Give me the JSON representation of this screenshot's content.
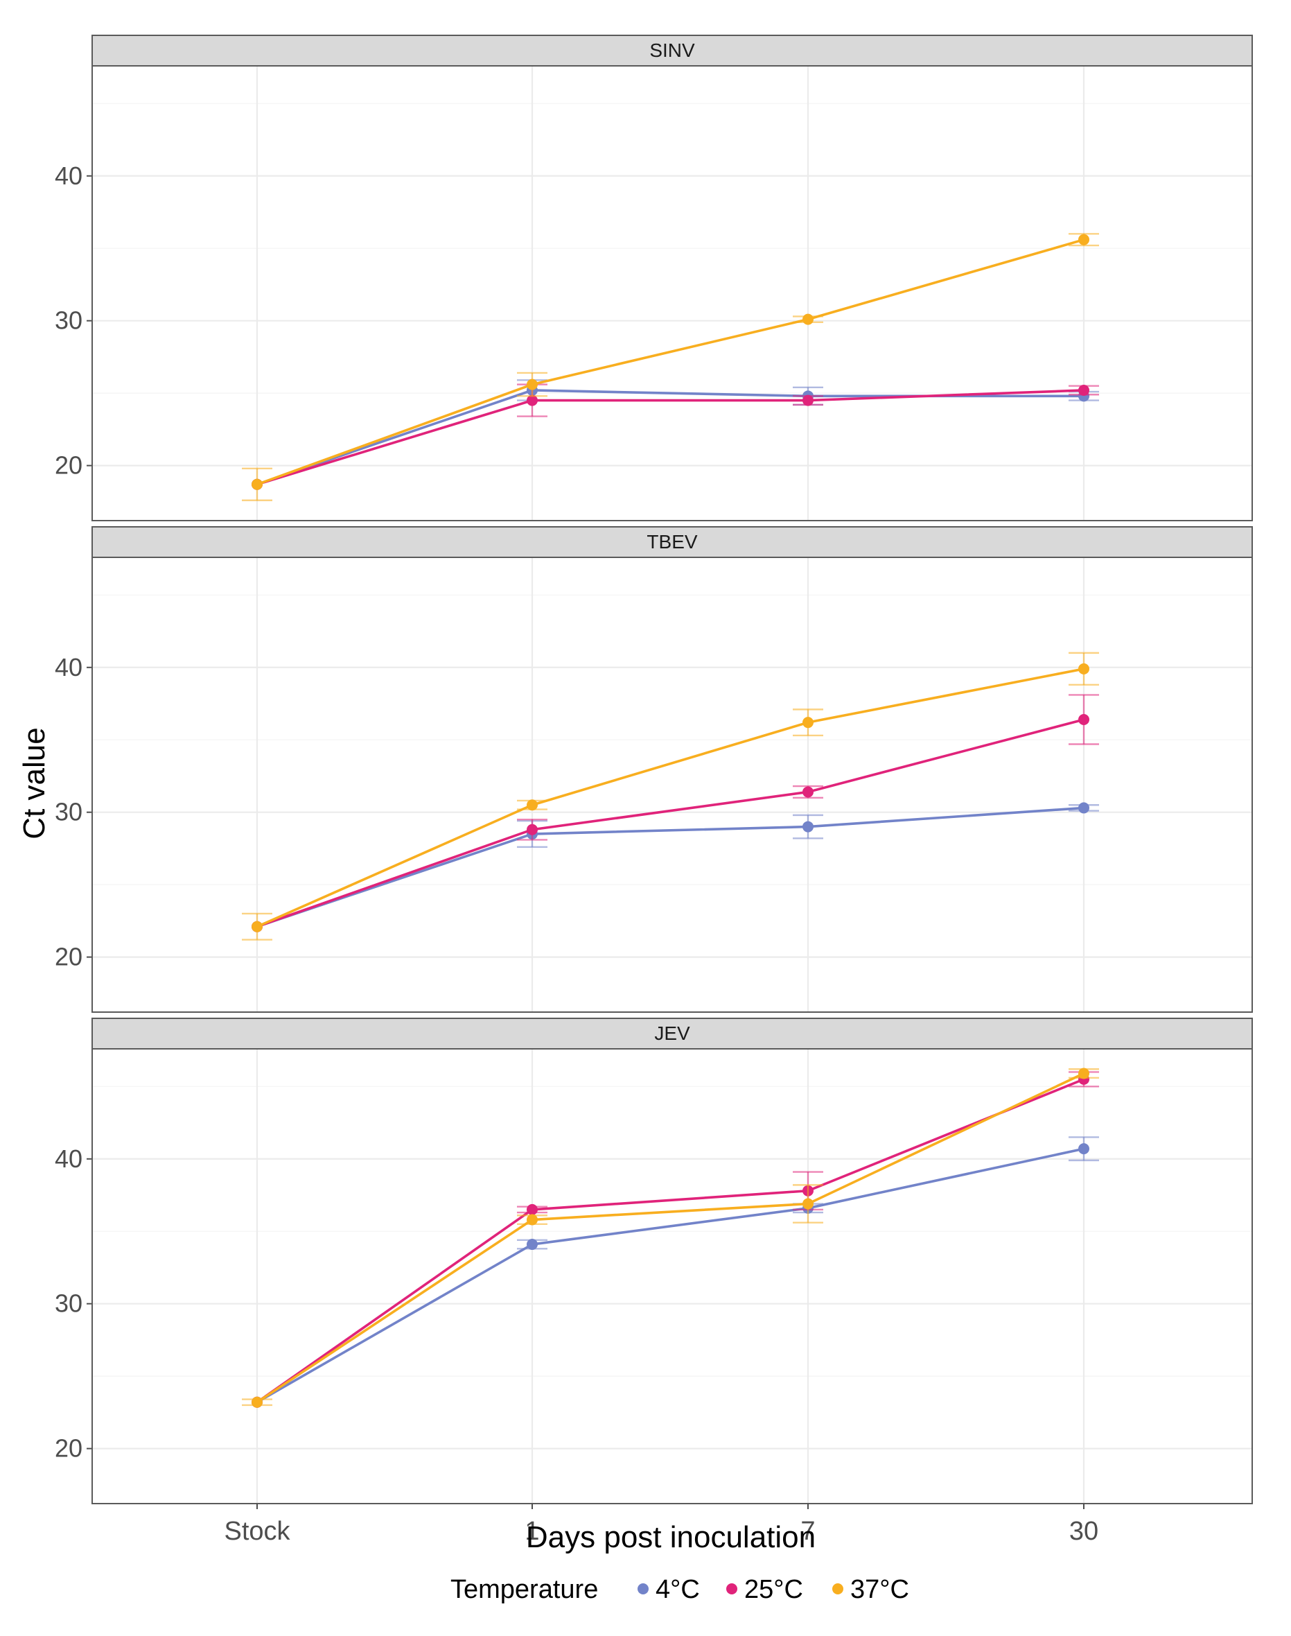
{
  "chart_data": {
    "type": "line",
    "facet_by": "virus",
    "xlabel": "Days post inoculation",
    "ylabel": "Ct value",
    "categories": [
      "Stock",
      "1",
      "7",
      "30"
    ],
    "ylim": [
      16.2,
      47.6
    ],
    "yticks": [
      20,
      30,
      40
    ],
    "grid": true,
    "legend": {
      "title": "Temperature",
      "position": "bottom",
      "entries": [
        {
          "name": "4°C",
          "color": "#7283c9"
        },
        {
          "name": "25°C",
          "color": "#e0237a"
        },
        {
          "name": "37°C",
          "color": "#f8ae1f"
        }
      ]
    },
    "panels": [
      {
        "title": "SINV",
        "series": [
          {
            "name": "4°C",
            "values": [
              18.7,
              25.2,
              24.8,
              24.8
            ],
            "err": [
              0,
              0.7,
              0.6,
              0.3
            ]
          },
          {
            "name": "25°C",
            "values": [
              18.7,
              24.5,
              24.5,
              25.2
            ],
            "err": [
              0,
              1.1,
              0.3,
              0.3
            ]
          },
          {
            "name": "37°C",
            "values": [
              18.7,
              25.6,
              30.1,
              35.6
            ],
            "err": [
              1.1,
              0.8,
              0.2,
              0.4
            ]
          }
        ]
      },
      {
        "title": "TBEV",
        "series": [
          {
            "name": "4°C",
            "values": [
              22.1,
              28.5,
              29.0,
              30.3
            ],
            "err": [
              0,
              0.9,
              0.8,
              0.2
            ]
          },
          {
            "name": "25°C",
            "values": [
              22.1,
              28.8,
              31.4,
              36.4
            ],
            "err": [
              0,
              0.7,
              0.4,
              1.7
            ]
          },
          {
            "name": "37°C",
            "values": [
              22.1,
              30.5,
              36.2,
              39.9
            ],
            "err": [
              0.9,
              0.3,
              0.9,
              1.1
            ]
          }
        ]
      },
      {
        "title": "JEV",
        "series": [
          {
            "name": "4°C",
            "values": [
              23.2,
              34.1,
              36.6,
              40.7
            ],
            "err": [
              0,
              0.3,
              0.3,
              0.8
            ]
          },
          {
            "name": "25°C",
            "values": [
              23.2,
              36.5,
              37.8,
              45.5
            ],
            "err": [
              0,
              0.2,
              1.3,
              0.5
            ]
          },
          {
            "name": "37°C",
            "values": [
              23.2,
              35.8,
              36.9,
              45.9
            ],
            "err": [
              0.2,
              0.3,
              1.3,
              0.3
            ]
          }
        ]
      }
    ]
  }
}
